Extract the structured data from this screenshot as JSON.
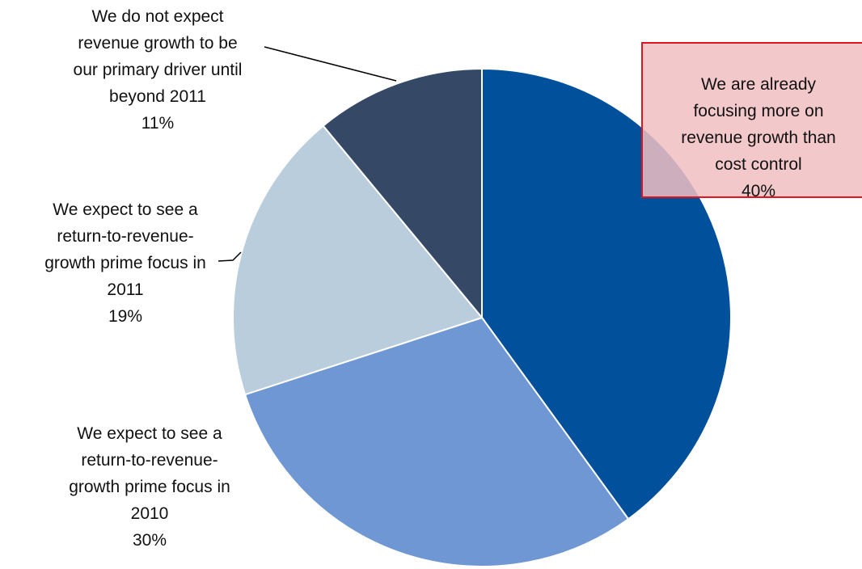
{
  "chart_data": {
    "type": "pie",
    "categories": [
      "We are already\nfocusing more on\nrevenue growth than\ncost control",
      "We expect to see a\nreturn-to-revenue-\ngrowth prime focus in\n2010",
      "We expect to see a\nreturn-to-revenue-\ngrowth prime focus in\n2011",
      "We do not expect\nrevenue growth to be\nour primary driver until\nbeyond 2011"
    ],
    "values": [
      40,
      30,
      19,
      11
    ],
    "value_labels": [
      "40%",
      "30%",
      "19%",
      "11%"
    ],
    "colors": [
      "#00509b",
      "#6f97d4",
      "#b9cddc",
      "#354866"
    ]
  }
}
